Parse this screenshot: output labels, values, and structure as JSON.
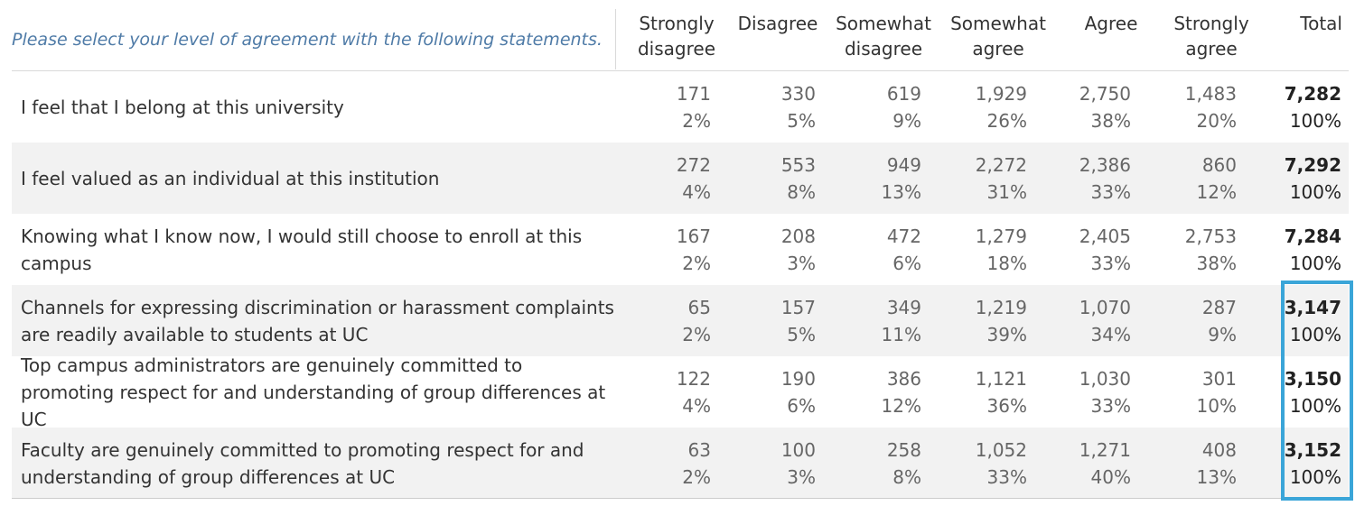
{
  "prompt": "Please select your level of agreement with the following statements.",
  "colors": {
    "prompt": "#4f7ba7",
    "highlight": "#3aa5d8",
    "shaded_row": "#f2f2f2"
  },
  "chart_data": {
    "type": "table",
    "columns": [
      "Strongly\ndisagree",
      "Disagree",
      "Somewhat\ndisagree",
      "Somewhat\nagree",
      "Agree",
      "Strongly\nagree",
      "Total"
    ],
    "rows": [
      {
        "statement": "I feel that I belong at this university",
        "counts": [
          "171",
          "330",
          "619",
          "1,929",
          "2,750",
          "1,483",
          "7,282"
        ],
        "percents": [
          "2%",
          "5%",
          "9%",
          "26%",
          "38%",
          "20%",
          "100%"
        ]
      },
      {
        "statement": "I feel valued as an individual at this institution",
        "counts": [
          "272",
          "553",
          "949",
          "2,272",
          "2,386",
          "860",
          "7,292"
        ],
        "percents": [
          "4%",
          "8%",
          "13%",
          "31%",
          "33%",
          "12%",
          "100%"
        ]
      },
      {
        "statement": "Knowing what I know now, I would still choose to enroll at this campus",
        "counts": [
          "167",
          "208",
          "472",
          "1,279",
          "2,405",
          "2,753",
          "7,284"
        ],
        "percents": [
          "2%",
          "3%",
          "6%",
          "18%",
          "33%",
          "38%",
          "100%"
        ]
      },
      {
        "statement": "Channels for expressing discrimination or harassment complaints are readily available to students at UC",
        "counts": [
          "65",
          "157",
          "349",
          "1,219",
          "1,070",
          "287",
          "3,147"
        ],
        "percents": [
          "2%",
          "5%",
          "11%",
          "39%",
          "34%",
          "9%",
          "100%"
        ]
      },
      {
        "statement": "Top campus administrators are genuinely committed to promoting respect for and understanding of group differences at  UC",
        "counts": [
          "122",
          "190",
          "386",
          "1,121",
          "1,030",
          "301",
          "3,150"
        ],
        "percents": [
          "4%",
          "6%",
          "12%",
          "36%",
          "33%",
          "10%",
          "100%"
        ]
      },
      {
        "statement": "Faculty are genuinely committed to promoting respect for and understanding of group differences at UC",
        "counts": [
          "63",
          "100",
          "258",
          "1,052",
          "1,271",
          "408",
          "3,152"
        ],
        "percents": [
          "2%",
          "3%",
          "8%",
          "33%",
          "40%",
          "13%",
          "100%"
        ]
      }
    ]
  }
}
